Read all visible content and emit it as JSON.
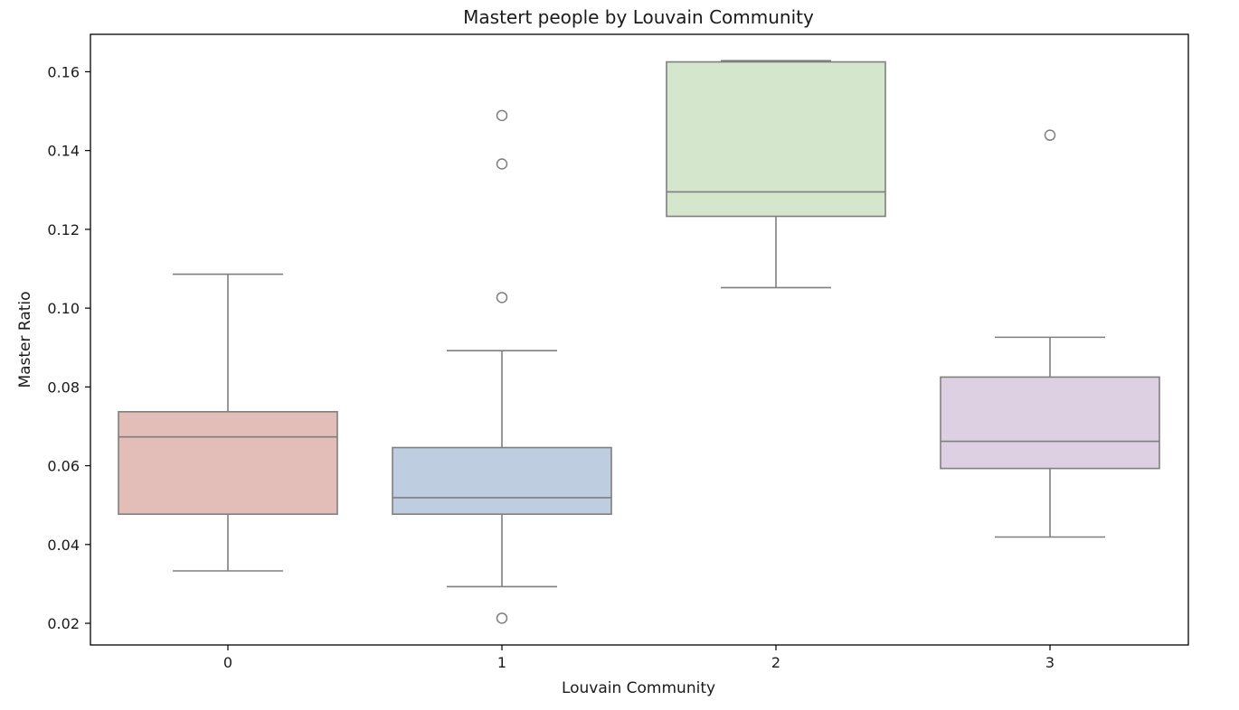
{
  "chart_data": {
    "type": "box",
    "title": "Mastert people by Louvain Community",
    "xlabel": "Louvain Community",
    "ylabel": "Master Ratio",
    "ylim": [
      0.0145,
      0.1695
    ],
    "yticks": [
      "0.02",
      "0.04",
      "0.06",
      "0.08",
      "0.10",
      "0.12",
      "0.14",
      "0.16"
    ],
    "grid": false,
    "legend": "none",
    "categories": [
      "0",
      "1",
      "2",
      "3"
    ],
    "boxes": [
      {
        "category": "0",
        "whisker_low": 0.0333,
        "q1": 0.0477,
        "median": 0.0673,
        "q3": 0.0737,
        "whisker_high": 0.1086,
        "outliers": [],
        "color": "#e3bdb8"
      },
      {
        "category": "1",
        "whisker_low": 0.0293,
        "q1": 0.0477,
        "median": 0.0519,
        "q3": 0.0646,
        "whisker_high": 0.0892,
        "outliers": [
          0.0213,
          0.1027,
          0.1366,
          0.1489
        ],
        "color": "#bfcde0"
      },
      {
        "category": "2",
        "whisker_low": 0.1052,
        "q1": 0.1233,
        "median": 0.1295,
        "q3": 0.1625,
        "whisker_high": 0.1628,
        "outliers": [],
        "color": "#d4e6cc"
      },
      {
        "category": "3",
        "whisker_low": 0.0419,
        "q1": 0.0593,
        "median": 0.0662,
        "q3": 0.0825,
        "whisker_high": 0.0926,
        "outliers": [
          0.1439
        ],
        "color": "#dcd0e2"
      }
    ],
    "line_color": "#7f7f7f"
  }
}
